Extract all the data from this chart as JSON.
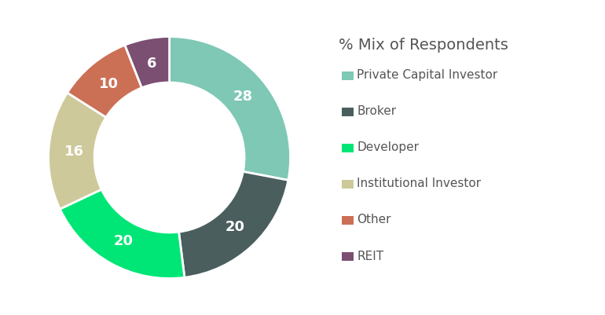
{
  "title": "% Mix of Respondents",
  "labels": [
    "Private Capital Investor",
    "Broker",
    "Developer",
    "Institutional Investor",
    "Other",
    "REIT"
  ],
  "values": [
    28,
    20,
    20,
    16,
    10,
    6
  ],
  "colors": [
    "#7ec8b5",
    "#4a5e5e",
    "#00e676",
    "#cdc99a",
    "#cc7055",
    "#7b4f72"
  ],
  "text_color": "#ffffff",
  "label_values": [
    "28",
    "20",
    "20",
    "16",
    "10",
    "6"
  ],
  "bg_color": "#ffffff",
  "title_color": "#555555",
  "legend_text_color": "#555555",
  "font_size_labels": 13,
  "font_size_title": 14,
  "font_size_legend": 11
}
